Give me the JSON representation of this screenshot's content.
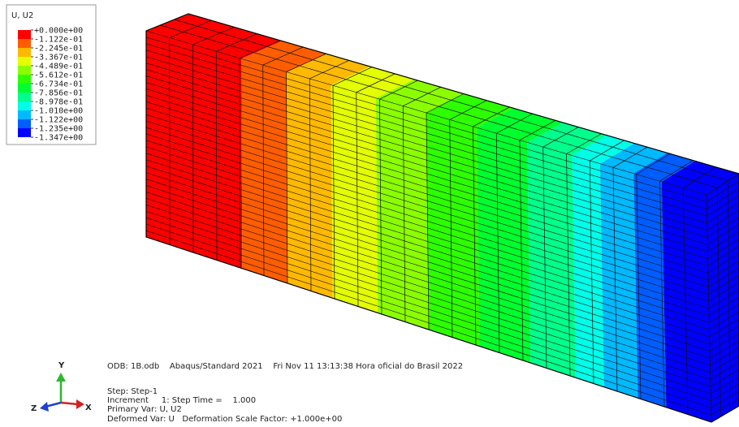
{
  "legend": {
    "title": "U, U2",
    "labels": [
      "+0.000e+00",
      "-1.122e-01",
      "-2.245e-01",
      "-3.367e-01",
      "-4.489e-01",
      "-5.612e-01",
      "-6.734e-01",
      "-7.856e-01",
      "-8.978e-01",
      "-1.010e+00",
      "-1.122e+00",
      "-1.235e+00",
      "-1.347e+00"
    ],
    "colors": [
      "#ff0000",
      "#ff5d00",
      "#ffb900",
      "#e3ff00",
      "#8bff00",
      "#2eff00",
      "#00ff2e",
      "#00ff8b",
      "#00ffe8",
      "#00b9ff",
      "#005dff",
      "#0000ff"
    ]
  },
  "info": {
    "odb": "ODB: 1B.odb    Abaqus/Standard 2021    Fri Nov 11 13:13:38 Hora oficial do Brasil 2022",
    "step": "Step: Step-1",
    "increment": "Increment     1: Step Time =    1.000",
    "primary": "Primary Var: U, U2",
    "deformed": "Deformed Var: U   Deformation Scale Factor: +1.000e+00"
  },
  "triad": {
    "y": "Y",
    "x": "X",
    "z": "Z"
  }
}
